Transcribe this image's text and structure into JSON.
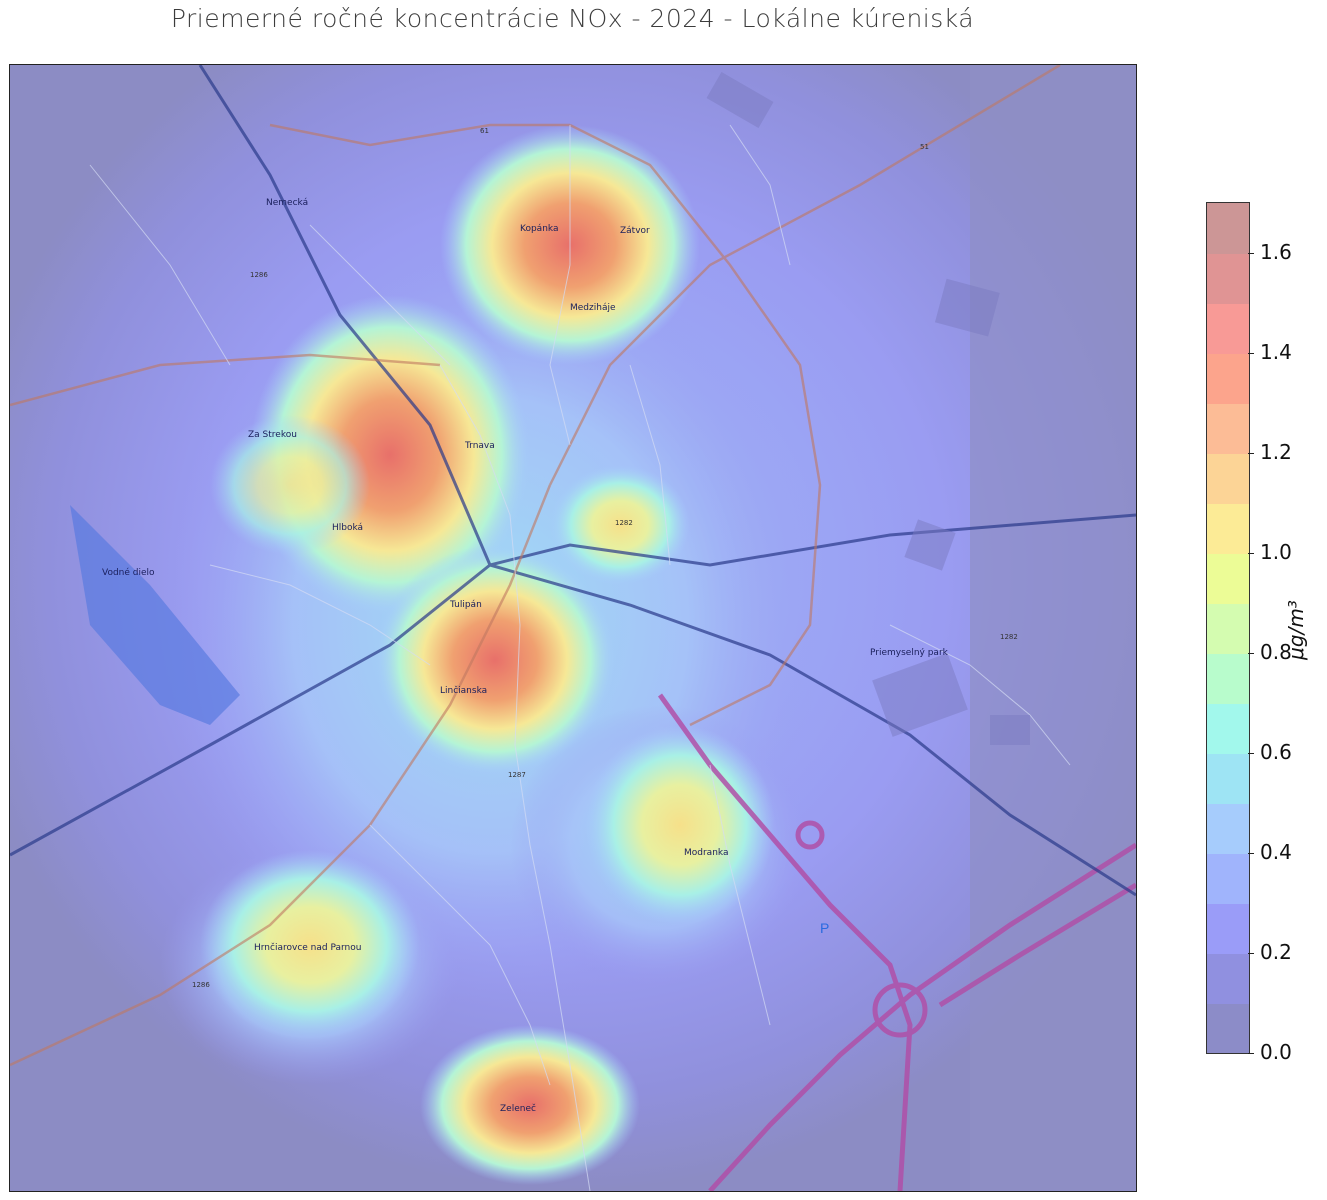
{
  "title": "Priemerné ročné koncentrácie NOx - 2024 - Lokálne kúreniská",
  "colorbar": {
    "label": "μg/m³",
    "min": 0.0,
    "max": 1.7,
    "ticks": [
      "0.0",
      "0.2",
      "0.4",
      "0.6",
      "0.8",
      "1.0",
      "1.2",
      "1.4",
      "1.6"
    ],
    "colors": [
      "#8c8cc8",
      "#9090e0",
      "#9a9cf8",
      "#a0b4fc",
      "#a6ccfc",
      "#9ee4f4",
      "#a2f8ec",
      "#b8fccc",
      "#d4fcb0",
      "#ecfc96",
      "#fceb96",
      "#fcd496",
      "#fcbc96",
      "#fca48c",
      "#f89a96",
      "#e09494",
      "#cc9696"
    ]
  },
  "map": {
    "places": [
      {
        "name": "Kopánka",
        "id": "kopanka"
      },
      {
        "name": "Zátvor",
        "id": "zatvor"
      },
      {
        "name": "Trnava",
        "id": "trnava"
      },
      {
        "name": "Za Strekou",
        "id": "za-strekou"
      },
      {
        "name": "Tulipán",
        "id": "tulipan"
      },
      {
        "name": "Hlboká",
        "id": "hlboka"
      },
      {
        "name": "Linčianska",
        "id": "linicianska"
      },
      {
        "name": "Medziháje",
        "id": "medzihaje"
      },
      {
        "name": "Modranka",
        "id": "modranka"
      },
      {
        "name": "Zeleneč",
        "id": "zelenec"
      },
      {
        "name": "Hrnčiarovce nad Parnou",
        "id": "hrnciarovce"
      },
      {
        "name": "Vodné dielo",
        "id": "vodne-dielo"
      },
      {
        "name": "Priemyselný park",
        "id": "priemyselny-park"
      },
      {
        "name": "Nemecká",
        "id": "nemecka"
      }
    ],
    "roads": [
      "61",
      "51",
      "1276",
      "1279",
      "1282",
      "1286",
      "1287"
    ]
  }
}
